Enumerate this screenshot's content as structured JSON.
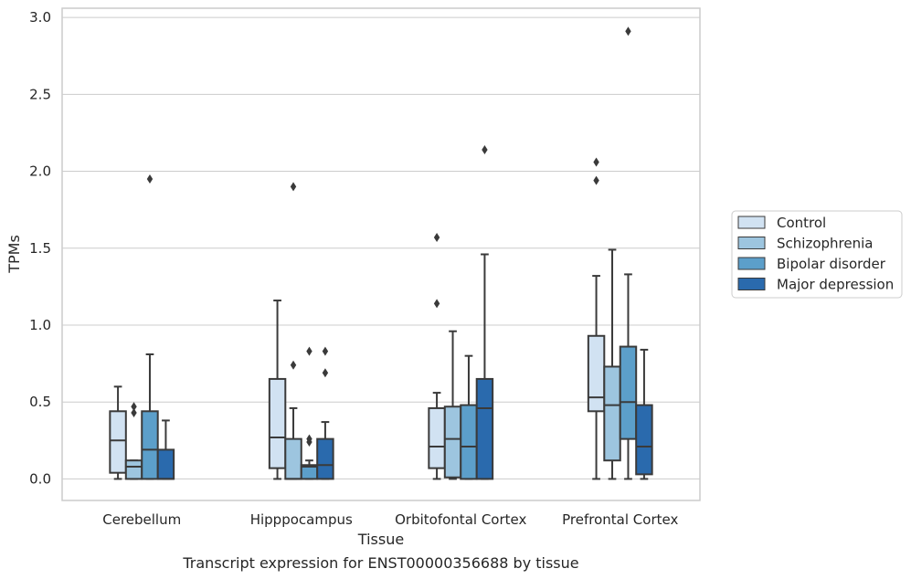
{
  "chart_data": {
    "type": "box",
    "caption": "Transcript expression for ENST00000356688 by tissue",
    "xlabel": "Tissue",
    "ylabel": "TPMs",
    "ylim": [
      -0.14,
      3.06
    ],
    "yticks": [
      "0.0",
      "0.5",
      "1.0",
      "1.5",
      "2.0",
      "2.5",
      "3.0"
    ],
    "categories": [
      "Cerebellum",
      "Hipppocampus",
      "Orbitofontal Cortex",
      "Prefrontal Cortex"
    ],
    "grid": true,
    "legend_position": "right",
    "series": [
      {
        "name": "Control",
        "color": "#d1e2f2",
        "boxes": [
          {
            "whislo": 0.0,
            "q1": 0.04,
            "med": 0.25,
            "q3": 0.44,
            "whishi": 0.6,
            "fliers": []
          },
          {
            "whislo": 0.0,
            "q1": 0.07,
            "med": 0.27,
            "q3": 0.65,
            "whishi": 1.16,
            "fliers": []
          },
          {
            "whislo": 0.0,
            "q1": 0.07,
            "med": 0.21,
            "q3": 0.46,
            "whishi": 0.56,
            "fliers": [
              1.14,
              1.57
            ]
          },
          {
            "whislo": 0.0,
            "q1": 0.44,
            "med": 0.53,
            "q3": 0.93,
            "whishi": 1.32,
            "fliers": [
              1.94,
              2.06
            ]
          }
        ]
      },
      {
        "name": "Schizophrenia",
        "color": "#9dc5df",
        "boxes": [
          {
            "whislo": 0.0,
            "q1": 0.0,
            "med": 0.08,
            "q3": 0.12,
            "whishi": 0.12,
            "fliers": [
              0.43,
              0.47
            ]
          },
          {
            "whislo": 0.0,
            "q1": 0.0,
            "med": 0.0,
            "q3": 0.26,
            "whishi": 0.46,
            "fliers": [
              0.74,
              1.9
            ]
          },
          {
            "whislo": 0.0,
            "q1": 0.01,
            "med": 0.26,
            "q3": 0.47,
            "whishi": 0.96,
            "fliers": []
          },
          {
            "whislo": 0.0,
            "q1": 0.12,
            "med": 0.48,
            "q3": 0.73,
            "whishi": 1.49,
            "fliers": []
          }
        ]
      },
      {
        "name": "Bipolar disorder",
        "color": "#5c9fca",
        "boxes": [
          {
            "whislo": 0.0,
            "q1": 0.0,
            "med": 0.19,
            "q3": 0.44,
            "whishi": 0.81,
            "fliers": [
              1.95
            ]
          },
          {
            "whislo": 0.0,
            "q1": 0.0,
            "med": 0.08,
            "q3": 0.09,
            "whishi": 0.12,
            "fliers": [
              0.24,
              0.26,
              0.83
            ]
          },
          {
            "whislo": 0.0,
            "q1": 0.0,
            "med": 0.21,
            "q3": 0.48,
            "whishi": 0.8,
            "fliers": []
          },
          {
            "whislo": 0.0,
            "q1": 0.26,
            "med": 0.5,
            "q3": 0.86,
            "whishi": 1.33,
            "fliers": [
              2.91
            ]
          }
        ]
      },
      {
        "name": "Major depression",
        "color": "#2a6aad",
        "boxes": [
          {
            "whislo": 0.0,
            "q1": 0.0,
            "med": 0.0,
            "q3": 0.19,
            "whishi": 0.38,
            "fliers": []
          },
          {
            "whislo": 0.0,
            "q1": 0.0,
            "med": 0.09,
            "q3": 0.26,
            "whishi": 0.37,
            "fliers": [
              0.69,
              0.83
            ]
          },
          {
            "whislo": 0.0,
            "q1": 0.0,
            "med": 0.46,
            "q3": 0.65,
            "whishi": 1.46,
            "fliers": [
              2.14
            ]
          },
          {
            "whislo": 0.0,
            "q1": 0.03,
            "med": 0.21,
            "q3": 0.48,
            "whishi": 0.84,
            "fliers": []
          }
        ]
      }
    ]
  }
}
